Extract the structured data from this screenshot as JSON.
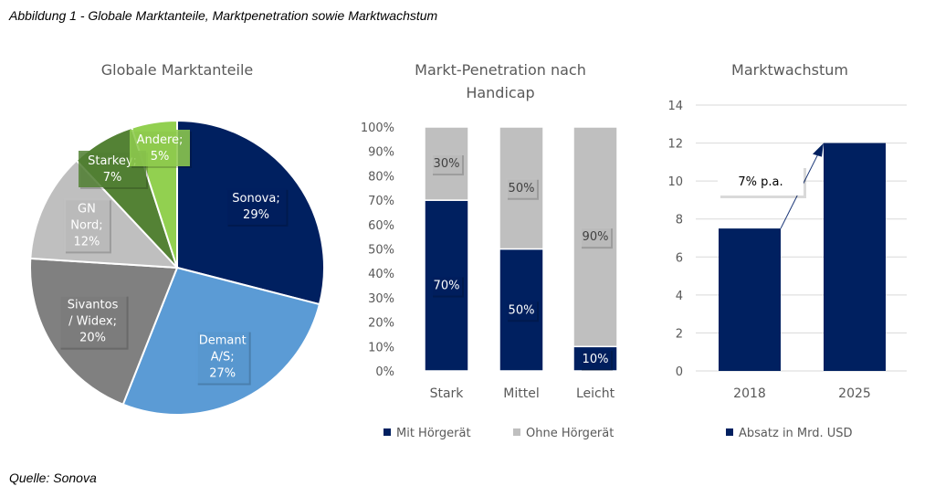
{
  "figure_title": "Abbildung 1 - Globale Marktanteile, Marktpenetration sowie Marktwachstum",
  "source": "Quelle: Sonova",
  "chart_data": [
    {
      "type": "pie",
      "title": "Globale Marktanteile",
      "slices": [
        {
          "label": [
            "Sonova;",
            "29%"
          ],
          "value": 29,
          "color": "#002060"
        },
        {
          "label": [
            "Demant",
            "A/S;",
            "27%"
          ],
          "value": 27,
          "color": "#5b9bd5"
        },
        {
          "label": [
            "Sivantos",
            "/ Widex;",
            "20%"
          ],
          "value": 20,
          "color": "#808080"
        },
        {
          "label": [
            "GN",
            "Nord;",
            "12%"
          ],
          "value": 12,
          "color": "#bfbfbf"
        },
        {
          "label": [
            "Starkey;",
            "7%"
          ],
          "value": 7,
          "color": "#548235"
        },
        {
          "label": [
            "Andere;",
            "5%"
          ],
          "value": 5,
          "color": "#92d050"
        }
      ]
    },
    {
      "type": "bar",
      "stacked": true,
      "title": [
        "Markt-Penetration nach",
        "Handicap"
      ],
      "categories": [
        "Stark",
        "Mittel",
        "Leicht"
      ],
      "series": [
        {
          "name": "Mit Hörgerät",
          "values": [
            70,
            50,
            10
          ],
          "labels": [
            "70%",
            "50%",
            "10%"
          ],
          "color": "#002060"
        },
        {
          "name": "Ohne Hörgerät",
          "values": [
            30,
            50,
            90
          ],
          "labels": [
            "30%",
            "50%",
            "90%"
          ],
          "color": "#bfbfbf"
        }
      ],
      "ylim": [
        0,
        100
      ],
      "yticks": [
        "0%",
        "10%",
        "20%",
        "30%",
        "40%",
        "50%",
        "60%",
        "70%",
        "80%",
        "90%",
        "100%"
      ],
      "grid": false,
      "legend": "bottom"
    },
    {
      "type": "bar",
      "title": "Marktwachstum",
      "categories": [
        "2018",
        "2025"
      ],
      "series": [
        {
          "name": "Absatz in Mrd. USD",
          "values": [
            7.5,
            12
          ],
          "color": "#002060"
        }
      ],
      "ylim": [
        0,
        14
      ],
      "yticks": [
        "0",
        "2",
        "4",
        "6",
        "8",
        "10",
        "12",
        "14"
      ],
      "grid": true,
      "legend": "bottom",
      "annotation": "7% p.a."
    }
  ]
}
